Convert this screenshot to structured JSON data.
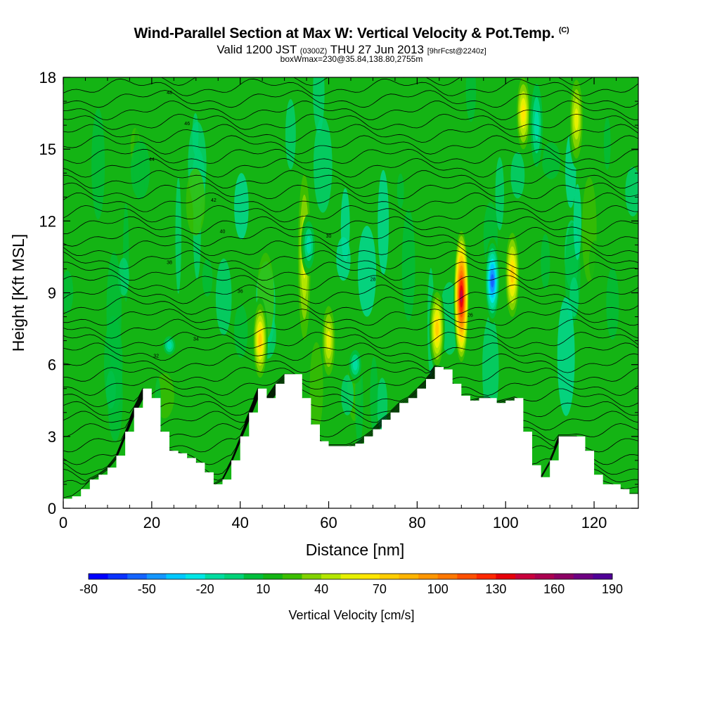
{
  "title": "Wind-Parallel Section at Max W: Vertical Velocity & Pot.Temp.",
  "title_mark": "(C)",
  "subtitle": {
    "part1": "Valid 1200 JST",
    "part2": "(0300Z)",
    "part3": "THU 27 Jun 2013",
    "part4": "[9hrFcst@2240z]"
  },
  "subtitle2": "boxWmax=230@35.84,138.80,2755m",
  "chart_data": {
    "type": "heatmap",
    "xlabel": "Distance [nm]",
    "ylabel": "Height [Kft MSL]",
    "xlim": [
      0,
      130
    ],
    "ylim": [
      0,
      18
    ],
    "x_ticks": [
      "0",
      "20",
      "40",
      "60",
      "80",
      "100",
      "120"
    ],
    "y_ticks": [
      "0",
      "3",
      "6",
      "9",
      "12",
      "15",
      "18"
    ],
    "colorbar": {
      "label": "Vertical Velocity [cm/s]",
      "tick_labels": [
        "-80",
        "-50",
        "-20",
        "10",
        "40",
        "70",
        "100",
        "130",
        "160",
        "190"
      ],
      "range": [
        -80,
        190
      ],
      "step": 10,
      "colors": [
        "#0000ff",
        "#0a32ff",
        "#1464ff",
        "#1496ff",
        "#00c8ff",
        "#00e6e6",
        "#00dca0",
        "#00d278",
        "#00be3c",
        "#14b414",
        "#3cbe00",
        "#82d200",
        "#b4e600",
        "#e6f000",
        "#ffe600",
        "#ffcd00",
        "#ffb400",
        "#ff9600",
        "#ff7800",
        "#ff5000",
        "#ff2800",
        "#e6000a",
        "#c8003c",
        "#aa0050",
        "#8c0064",
        "#6e0082",
        "#500096"
      ]
    },
    "terrain_kft": [
      [
        0,
        0.4
      ],
      [
        2,
        0.5
      ],
      [
        4,
        0.8
      ],
      [
        6,
        1.2
      ],
      [
        8,
        1.4
      ],
      [
        10,
        1.7
      ],
      [
        12,
        2.2
      ],
      [
        14,
        3.2
      ],
      [
        16,
        4.2
      ],
      [
        18,
        5.0
      ],
      [
        20,
        4.6
      ],
      [
        22,
        3.2
      ],
      [
        24,
        2.4
      ],
      [
        26,
        2.3
      ],
      [
        28,
        2.1
      ],
      [
        30,
        1.9
      ],
      [
        32,
        1.5
      ],
      [
        34,
        1.0
      ],
      [
        36,
        1.2
      ],
      [
        38,
        2.0
      ],
      [
        40,
        3.0
      ],
      [
        42,
        4.0
      ],
      [
        44,
        5.0
      ],
      [
        46,
        4.6
      ],
      [
        48,
        5.2
      ],
      [
        50,
        5.6
      ],
      [
        52,
        5.6
      ],
      [
        54,
        4.6
      ],
      [
        56,
        3.5
      ],
      [
        58,
        2.8
      ],
      [
        60,
        2.6
      ],
      [
        62,
        2.6
      ],
      [
        64,
        2.6
      ],
      [
        66,
        2.7
      ],
      [
        68,
        3.0
      ],
      [
        70,
        3.3
      ],
      [
        72,
        3.7
      ],
      [
        74,
        4.0
      ],
      [
        76,
        4.4
      ],
      [
        78,
        4.6
      ],
      [
        80,
        5.0
      ],
      [
        82,
        5.4
      ],
      [
        84,
        5.9
      ],
      [
        86,
        5.8
      ],
      [
        88,
        5.2
      ],
      [
        90,
        4.7
      ],
      [
        92,
        4.5
      ],
      [
        94,
        4.6
      ],
      [
        96,
        4.6
      ],
      [
        98,
        4.4
      ],
      [
        100,
        4.5
      ],
      [
        102,
        4.6
      ],
      [
        104,
        3.2
      ],
      [
        106,
        1.8
      ],
      [
        108,
        1.3
      ],
      [
        110,
        2.0
      ],
      [
        112,
        3.0
      ],
      [
        114,
        3.0
      ],
      [
        116,
        3.0
      ],
      [
        118,
        2.4
      ],
      [
        120,
        1.4
      ],
      [
        122,
        1.0
      ],
      [
        124,
        1.0
      ],
      [
        126,
        0.8
      ],
      [
        128,
        0.6
      ],
      [
        130,
        0.6
      ]
    ],
    "updraft_features": [
      {
        "x": 19,
        "y0": 3.3,
        "y1": 5.0,
        "w": 10,
        "value": 45
      },
      {
        "x": 44.5,
        "y0": 5.5,
        "y1": 8.5,
        "w": 10,
        "value": 70
      },
      {
        "x": 54.5,
        "y0": 6.5,
        "y1": 14.5,
        "w": 10,
        "value": 50
      },
      {
        "x": 60,
        "y0": 5.5,
        "y1": 8.5,
        "w": 10,
        "value": 50
      },
      {
        "x": 84.5,
        "y0": 6.0,
        "y1": 9.0,
        "w": 10,
        "value": 70
      },
      {
        "x": 90,
        "y0": 6.2,
        "y1": 11.5,
        "w": 10,
        "value": 140
      },
      {
        "x": 101.5,
        "y0": 8.0,
        "y1": 11.5,
        "w": 10,
        "value": 70
      },
      {
        "x": 104,
        "y0": 15.0,
        "y1": 18.0,
        "w": 10,
        "value": 60
      },
      {
        "x": 116,
        "y0": 14.5,
        "y1": 18.0,
        "w": 10,
        "value": 50
      }
    ],
    "downdraft_features": [
      {
        "x": 24,
        "y0": 6.6,
        "y1": 7.0,
        "w": 10,
        "value": -20
      },
      {
        "x": 55.5,
        "y0": 10.0,
        "y1": 12.0,
        "w": 10,
        "value": -20
      },
      {
        "x": 66,
        "y0": 5.5,
        "y1": 6.5,
        "w": 10,
        "value": -20
      },
      {
        "x": 97,
        "y0": 8.0,
        "y1": 11.0,
        "w": 10,
        "value": -60
      },
      {
        "x": 107,
        "y0": 14.0,
        "y1": 18.0,
        "w": 10,
        "value": -20
      }
    ],
    "isentrope_labels": [
      "48",
      "46",
      "44",
      "42",
      "40",
      "38",
      "36",
      "34",
      "32",
      "30",
      "28",
      "26"
    ]
  }
}
